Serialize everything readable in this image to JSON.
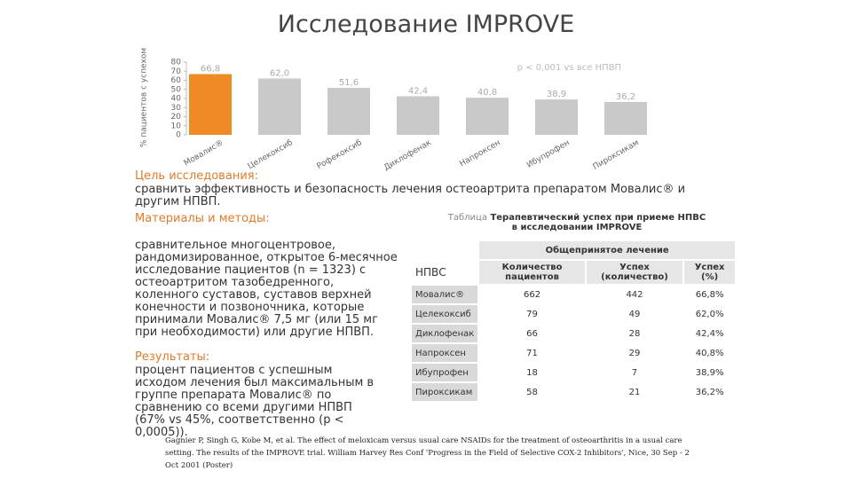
{
  "title": "Исследование IMPROVE",
  "chart_data": {
    "type": "bar",
    "ylabel": "% пациентов с успехом",
    "annotation": "p < 0,001 vs все НПВП",
    "categories": [
      "Мовалис®",
      "Целекоксиб",
      "Рофекоксиб",
      "Диклофенак",
      "Напроксен",
      "Ибупрофен",
      "Пироксикам"
    ],
    "values": [
      66.8,
      62.0,
      51.6,
      42.4,
      40.8,
      38.9,
      36.2
    ],
    "value_labels": [
      "66,8",
      "62,0",
      "51,6",
      "42,4",
      "40,8",
      "38,9",
      "36,2"
    ],
    "colors": [
      "#f08a24",
      "#c9c9c9",
      "#c9c9c9",
      "#c9c9c9",
      "#c9c9c9",
      "#c9c9c9",
      "#c9c9c9"
    ],
    "ylim": [
      0,
      80
    ],
    "yticks": [
      0,
      10,
      20,
      30,
      40,
      50,
      60,
      70,
      80
    ]
  },
  "sections": [
    {
      "heading": "Цель исследования:",
      "text": "сравнить эффективность и безопасность лечения остеоартрита препаратом Мовалис® и другим НПВП."
    },
    {
      "heading": "Материалы и методы:",
      "text": "сравнительное многоцентровое, рандомизированное, открытое 6-месячное исследование пациентов (n = 1323) с остеоартритом тазобедренного, коленного суставов, суставов верхней конечности и позвоночника, которые принимали Мовалис® 7,5 мг (или 15 мг при необходимости) или другие НПВП."
    },
    {
      "heading": "Результаты:",
      "text": "процент пациентов с успешным исходом лечения был максимальным в группе препарата Мовалис® по сравнению со всеми другими НПВП (67% vs 45%, соответственно (p < 0,0005))."
    }
  ],
  "table": {
    "caption_label": "Таблица",
    "caption": "Терапевтический успех при приеме НПВС в исследовании IMPROVE",
    "group_header": "Общепринятое лечение",
    "headers": [
      "НПВС",
      "Количество пациентов",
      "Успех (количество)",
      "Успех (%)"
    ],
    "rows": [
      [
        "Мовалис®",
        "662",
        "442",
        "66,8%"
      ],
      [
        "Целекоксиб",
        "79",
        "49",
        "62,0%"
      ],
      [
        "Диклофенак",
        "66",
        "28",
        "42,4%"
      ],
      [
        "Напроксен",
        "71",
        "29",
        "40,8%"
      ],
      [
        "Ибупрофен",
        "18",
        "7",
        "38,9%"
      ],
      [
        "Пироксикам",
        "58",
        "21",
        "36,2%"
      ]
    ]
  },
  "reference": "Gagnier P, Singh G, Kobe M, et al. The effect of meloxicam versus usual care NSAIDs for the treatment of osteoarthritis in a usual care setting. The results of the IMPROVE trial. William Harvey Res Conf 'Progress in the Field of Selective COX-2 Inhibitors', Nice, 30 Sep - 2 Oct 2001 (Poster)"
}
